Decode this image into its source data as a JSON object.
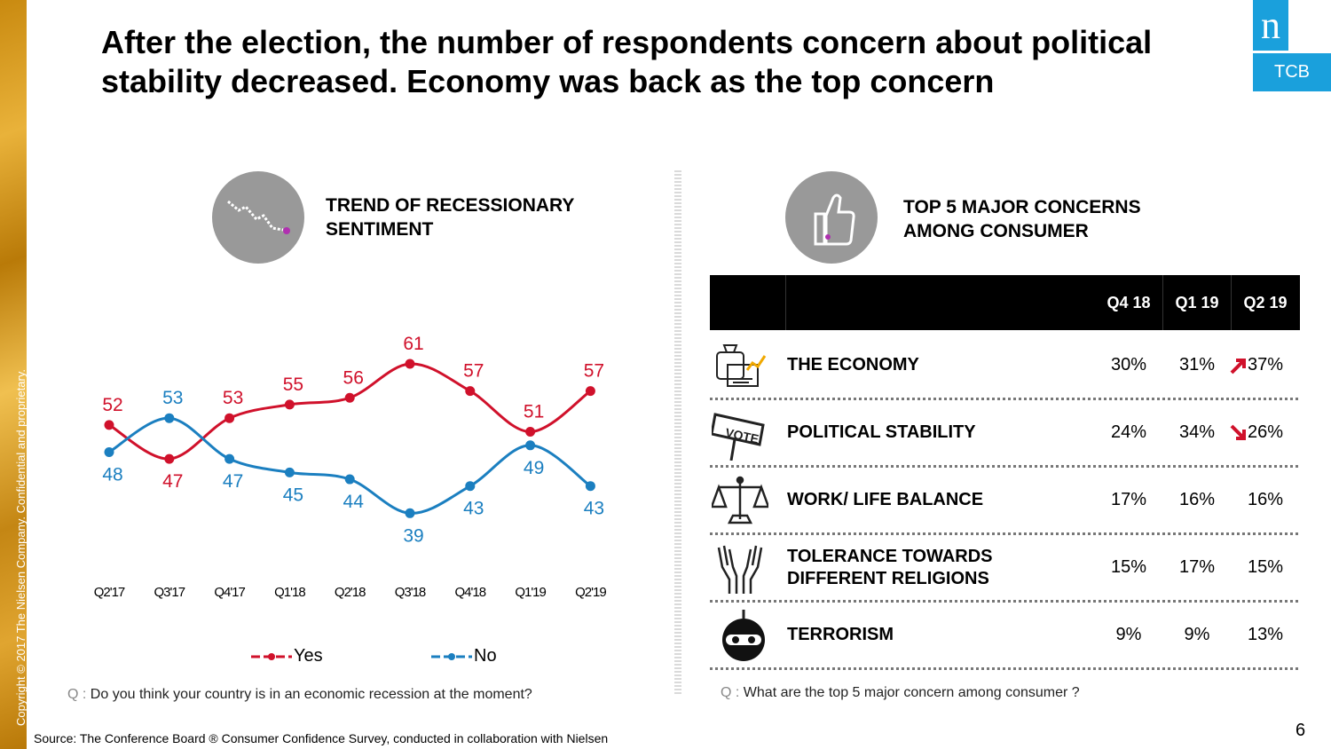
{
  "slide": {
    "title": "After the election, the number of respondents concern about political stability decreased. Economy was back as the top concern",
    "copyright": "Copyright © 2017 The Nielsen Company. Confidential and proprietary.",
    "logo_letter": "n",
    "logo_label": "TCB",
    "source": "Source: The Conference Board ® Consumer Confidence Survey, conducted in collaboration with Nielsen",
    "page_number": "6"
  },
  "left": {
    "section_title": "TREND OF RECESSIONARY SENTIMENT",
    "question_prefix": "Q :",
    "question": "Do you think your country is in an economic recession at the moment?"
  },
  "right": {
    "section_title": "TOP 5 MAJOR CONCERNS AMONG CONSUMER",
    "question_prefix": "Q :",
    "question": "What are the top 5 major concern among consumer ?"
  },
  "colors": {
    "yes": "#d0112b",
    "no": "#1b7fc0",
    "accent": "#1aa0dc"
  },
  "chart_data": [
    {
      "type": "line",
      "title": "TREND OF RECESSIONARY SENTIMENT",
      "categories": [
        "Q2'17",
        "Q3'17",
        "Q4'17",
        "Q1'18",
        "Q2'18",
        "Q3'18",
        "Q4'18",
        "Q1'19",
        "Q2'19"
      ],
      "series": [
        {
          "name": "Yes",
          "values": [
            52,
            47,
            53,
            55,
            56,
            61,
            57,
            51,
            57
          ]
        },
        {
          "name": "No",
          "values": [
            48,
            53,
            47,
            45,
            44,
            39,
            43,
            49,
            43
          ]
        }
      ],
      "ylim": [
        35,
        65
      ],
      "legend": "bottom",
      "grid": false
    },
    {
      "type": "table",
      "title": "TOP 5 MAJOR CONCERNS AMONG CONSUMER",
      "columns": [
        "Q4 18",
        "Q1 19",
        "Q2 19"
      ],
      "rows": [
        {
          "icon": "economy-icon",
          "label": "THE ECONOMY",
          "values": [
            "30%",
            "31%",
            "37%"
          ],
          "trend": "up"
        },
        {
          "icon": "vote-sign-icon",
          "label": "POLITICAL STABILITY",
          "values": [
            "24%",
            "34%",
            "26%"
          ],
          "trend": "down"
        },
        {
          "icon": "scale-icon",
          "label": "WORK/ LIFE BALANCE",
          "values": [
            "17%",
            "16%",
            "16%"
          ],
          "trend": ""
        },
        {
          "icon": "praying-hands-icon",
          "label": "TOLERANCE TOWARDS DIFFERENT RELIGIONS",
          "values": [
            "15%",
            "17%",
            "15%"
          ],
          "trend": ""
        },
        {
          "icon": "bomb-icon",
          "label": "TERRORISM",
          "values": [
            "9%",
            "9%",
            "13%"
          ],
          "trend": ""
        }
      ]
    }
  ]
}
